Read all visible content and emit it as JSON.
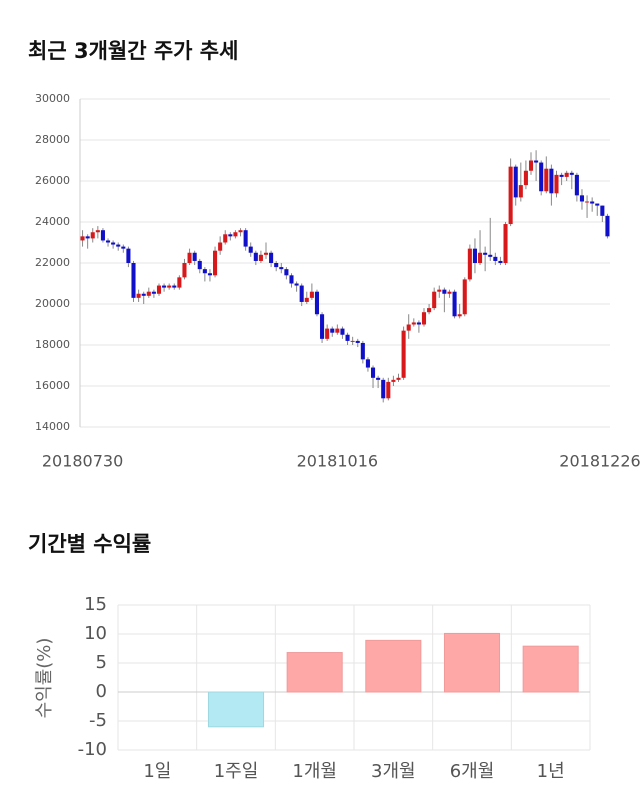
{
  "chart_data": [
    {
      "type": "candlestick",
      "title": "최근 3개월간 주가 추세",
      "categories": [
        "20180730",
        null,
        null,
        null,
        null,
        null,
        null,
        null,
        null,
        null,
        null,
        null,
        null,
        null,
        null,
        null,
        null,
        null,
        null,
        null,
        null,
        null,
        null,
        null,
        null,
        null,
        null,
        null,
        null,
        null,
        null,
        null,
        null,
        null,
        null,
        null,
        null,
        null,
        null,
        null,
        null,
        null,
        null,
        null,
        null,
        null,
        null,
        null,
        null,
        null,
        "20181016",
        null,
        null,
        null,
        null,
        null,
        null,
        null,
        null,
        null,
        null,
        null,
        null,
        null,
        null,
        null,
        null,
        null,
        null,
        null,
        null,
        null,
        null,
        null,
        null,
        null,
        null,
        null,
        null,
        null,
        null,
        null,
        null,
        null,
        null,
        null,
        null,
        null,
        null,
        null,
        null,
        null,
        null,
        null,
        null,
        null,
        null,
        null,
        null,
        null,
        null,
        null,
        null,
        "20181226"
      ],
      "open": [
        23100,
        23300,
        23200,
        23500,
        23600,
        23100,
        23000,
        22900,
        22800,
        22700,
        22000,
        20300,
        20500,
        20400,
        20600,
        20500,
        20900,
        20800,
        20900,
        20800,
        21300,
        22000,
        22500,
        22100,
        21700,
        21500,
        21400,
        22600,
        23000,
        23400,
        23300,
        23500,
        23600,
        22800,
        22500,
        22100,
        22400,
        22500,
        22000,
        21800,
        21700,
        21400,
        21000,
        20900,
        20100,
        20300,
        20600,
        19500,
        18300,
        18800,
        18600,
        18800,
        18500,
        18200,
        18200,
        18100,
        17300,
        16900,
        16400,
        16300,
        15400,
        16200,
        16300,
        16400,
        18700,
        19000,
        19100,
        19000,
        19600,
        19800,
        20600,
        20700,
        20500,
        20600,
        19400,
        19500,
        21200,
        22700,
        22000,
        22500,
        22400,
        22300,
        22100,
        22000,
        23900,
        26700,
        25200,
        25800,
        26500,
        27000,
        26900,
        25500,
        26600,
        25400,
        26300,
        26200,
        26400,
        26300,
        25300,
        25000,
        25000,
        24900,
        24800,
        24300
      ],
      "high": [
        23600,
        23400,
        23700,
        23800,
        23700,
        23200,
        23100,
        23000,
        22900,
        22800,
        22100,
        20700,
        20600,
        20800,
        20700,
        21000,
        21000,
        21000,
        21000,
        21400,
        22200,
        22700,
        22600,
        22200,
        21800,
        21700,
        22800,
        23300,
        23600,
        23500,
        23600,
        23700,
        23700,
        23000,
        22600,
        22600,
        23000,
        22600,
        22100,
        22000,
        21800,
        21500,
        21100,
        21000,
        20600,
        21000,
        20700,
        19600,
        19000,
        18900,
        19000,
        18900,
        18600,
        18400,
        18300,
        18200,
        17400,
        17000,
        16500,
        16400,
        16400,
        16500,
        16600,
        18900,
        19500,
        19300,
        19200,
        19800,
        20000,
        20800,
        20900,
        20800,
        20700,
        20700,
        20000,
        21300,
        22900,
        23200,
        23600,
        22800,
        24200,
        22500,
        22300,
        24000,
        27100,
        26800,
        26900,
        27000,
        27400,
        27500,
        27000,
        27200,
        26800,
        26500,
        26400,
        26500,
        26500,
        26400,
        25600,
        25300,
        25200,
        24900,
        24800,
        24400
      ],
      "low": [
        22800,
        22700,
        23000,
        23200,
        23000,
        22800,
        22700,
        22600,
        22500,
        21800,
        20100,
        20100,
        20000,
        20300,
        20300,
        20400,
        20600,
        20700,
        20700,
        20700,
        21200,
        21900,
        21900,
        21500,
        21100,
        21100,
        21300,
        22400,
        22900,
        23100,
        23200,
        23300,
        22600,
        22300,
        21900,
        22000,
        22200,
        21800,
        21600,
        21500,
        21200,
        20800,
        20600,
        19900,
        20000,
        20200,
        19400,
        18100,
        18200,
        18400,
        18500,
        18300,
        18000,
        18000,
        17900,
        17100,
        16700,
        15900,
        15900,
        15200,
        15300,
        16000,
        16200,
        16300,
        18300,
        18900,
        18600,
        18900,
        19500,
        19700,
        20300,
        19600,
        20300,
        19300,
        19300,
        19400,
        21100,
        21500,
        21900,
        21600,
        22100,
        21900,
        21900,
        21900,
        23800,
        24800,
        25000,
        25600,
        26300,
        26000,
        25300,
        25400,
        24800,
        25200,
        25800,
        26000,
        25600,
        25000,
        24600,
        24200,
        24500,
        24300,
        24000,
        23200
      ],
      "close": [
        23300,
        23200,
        23500,
        23600,
        23100,
        23000,
        22900,
        22800,
        22700,
        22000,
        20300,
        20500,
        20400,
        20600,
        20500,
        20900,
        20800,
        20900,
        20800,
        21300,
        22000,
        22500,
        22100,
        21700,
        21500,
        21400,
        22600,
        23000,
        23400,
        23300,
        23500,
        23600,
        22800,
        22500,
        22100,
        22400,
        22500,
        22000,
        21800,
        21700,
        21400,
        21000,
        20900,
        20100,
        20300,
        20600,
        19500,
        18300,
        18800,
        18600,
        18800,
        18500,
        18200,
        18200,
        18100,
        17300,
        16900,
        16400,
        16300,
        15400,
        16200,
        16300,
        16400,
        18700,
        19000,
        19100,
        19000,
        19600,
        19800,
        20600,
        20700,
        20500,
        20600,
        19400,
        19500,
        21200,
        22700,
        22000,
        22500,
        22400,
        22300,
        22100,
        22000,
        23900,
        26700,
        25200,
        25800,
        26500,
        27000,
        26900,
        25500,
        26600,
        25400,
        26300,
        26200,
        26400,
        26300,
        25300,
        25000,
        25000,
        24900,
        24800,
        24300,
        23300
      ],
      "up_color": "#d7191c",
      "down_color": "#1010c8",
      "ylim": [
        14000,
        30000
      ],
      "yticks": [
        14000,
        16000,
        18000,
        20000,
        22000,
        24000,
        26000,
        28000,
        30000
      ],
      "grid": true
    },
    {
      "type": "bar",
      "title": "기간별 수익률",
      "ylabel": "수익률(%)",
      "categories": [
        "1일",
        "1주일",
        "1개월",
        "3개월",
        "6개월",
        "1년"
      ],
      "values": [
        0,
        -6,
        6.8,
        8.9,
        10.1,
        7.9
      ],
      "positive_color": "#ffa8a8",
      "negative_color": "#b3e9f2",
      "ylim": [
        -10,
        15
      ],
      "yticks": [
        -10,
        -5,
        0,
        5,
        10,
        15
      ],
      "grid": true
    }
  ]
}
